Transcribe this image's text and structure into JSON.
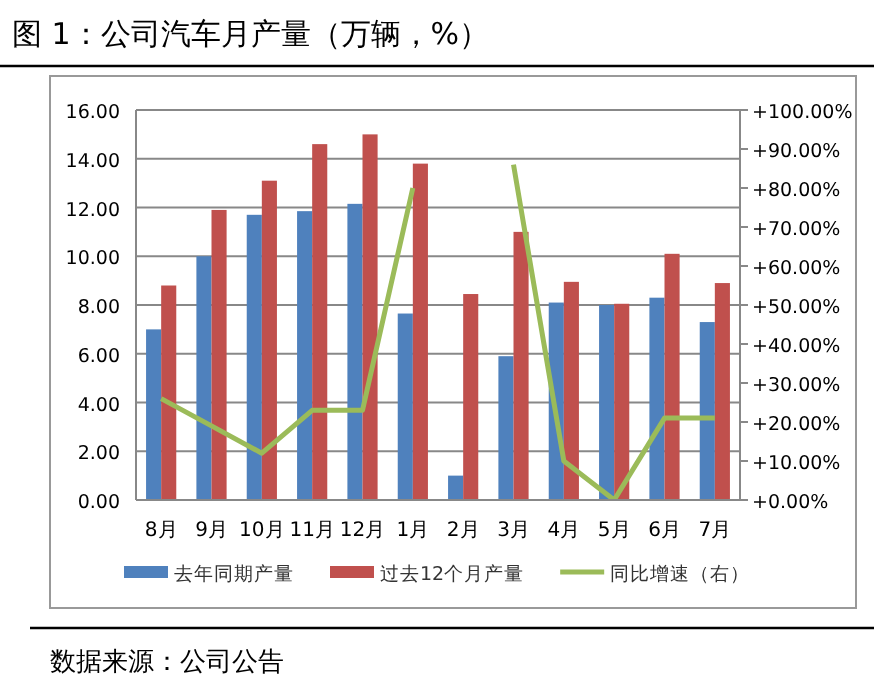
{
  "chart_data": {
    "type": "bar",
    "title": "图 1：公司汽车月产量（万辆，%）",
    "categories": [
      "8月",
      "9月",
      "10月",
      "11月",
      "12月",
      "1月",
      "2月",
      "3月",
      "4月",
      "5月",
      "6月",
      "7月"
    ],
    "series": [
      {
        "name": "去年同期产量",
        "color": "#4f81bd",
        "values": [
          7.0,
          10.0,
          11.7,
          11.85,
          12.15,
          7.65,
          1.0,
          5.9,
          8.1,
          8.0,
          8.3,
          7.3
        ]
      },
      {
        "name": "过去12个月产量",
        "color": "#c0504d",
        "values": [
          8.8,
          11.9,
          13.1,
          14.6,
          15.0,
          13.8,
          8.45,
          11.0,
          8.95,
          8.05,
          10.1,
          8.9
        ]
      },
      {
        "name": "同比增速（右）",
        "color": "#9bbb59",
        "type": "line",
        "axis": "y2",
        "values": [
          26,
          19,
          12,
          23,
          23,
          80,
          null,
          86,
          10,
          0,
          21,
          21
        ]
      }
    ],
    "ylim": [
      0,
      16
    ],
    "yticks": [
      {
        "value": 0,
        "label": "0.00"
      },
      {
        "value": 2,
        "label": "2.00"
      },
      {
        "value": 4,
        "label": "4.00"
      },
      {
        "value": 6,
        "label": "6.00"
      },
      {
        "value": 8,
        "label": "8.00"
      },
      {
        "value": 10,
        "label": "10.00"
      },
      {
        "value": 12,
        "label": "12.00"
      },
      {
        "value": 14,
        "label": "14.00"
      },
      {
        "value": 16,
        "label": "16.00"
      }
    ],
    "y2lim": [
      0,
      100
    ],
    "y2ticks": [
      {
        "value": 0,
        "label": "+0.00%"
      },
      {
        "value": 10,
        "label": "+10.00%"
      },
      {
        "value": 20,
        "label": "+20.00%"
      },
      {
        "value": 30,
        "label": "+30.00%"
      },
      {
        "value": 40,
        "label": "+40.00%"
      },
      {
        "value": 50,
        "label": "+50.00%"
      },
      {
        "value": 60,
        "label": "+60.00%"
      },
      {
        "value": 70,
        "label": "+70.00%"
      },
      {
        "value": 80,
        "label": "+80.00%"
      },
      {
        "value": 90,
        "label": "+90.00%"
      },
      {
        "value": 100,
        "label": "+100.00%"
      }
    ],
    "grid": "y",
    "legend": "bottom",
    "marker": "none",
    "line_style": "solid",
    "annotations": [
      "数据来源：公司公告"
    ]
  }
}
